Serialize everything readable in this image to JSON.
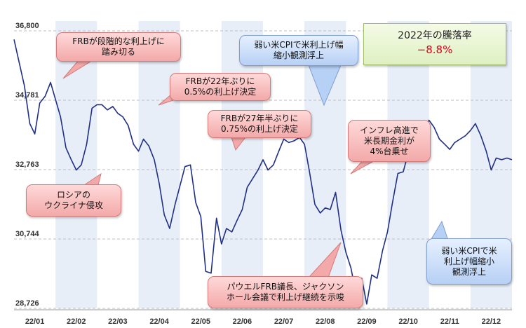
{
  "chart_data": {
    "type": "line",
    "title": "",
    "xlabel": "",
    "ylabel": "",
    "ylim": [
      28726,
      36800
    ],
    "y_ticks": [
      "36,800",
      "34,781",
      "32,763",
      "30,744",
      "28,726"
    ],
    "y_tick_values": [
      36800,
      34781,
      32763,
      30744,
      28726
    ],
    "x_ticks": [
      "22/01",
      "22/02",
      "22/03",
      "22/04",
      "22/05",
      "22/06",
      "22/07",
      "22/08",
      "22/09",
      "22/10",
      "22/11",
      "22/12"
    ],
    "grid": true,
    "series": [
      {
        "name": "",
        "color": "#1f2f86",
        "x": [
          0.0,
          0.12,
          0.25,
          0.38,
          0.5,
          0.62,
          0.75,
          0.88,
          1.0,
          1.12,
          1.25,
          1.38,
          1.5,
          1.62,
          1.75,
          1.88,
          2.0,
          2.12,
          2.25,
          2.38,
          2.5,
          2.62,
          2.75,
          2.88,
          3.0,
          3.12,
          3.25,
          3.38,
          3.5,
          3.62,
          3.75,
          3.88,
          4.0,
          4.12,
          4.25,
          4.38,
          4.5,
          4.62,
          4.75,
          4.88,
          5.0,
          5.12,
          5.25,
          5.38,
          5.5,
          5.62,
          5.75,
          5.88,
          6.0,
          6.12,
          6.25,
          6.38,
          6.5,
          6.62,
          6.75,
          6.88,
          7.0,
          7.12,
          7.25,
          7.38,
          7.5,
          7.62,
          7.75,
          7.88,
          8.0,
          8.12,
          8.25,
          8.38,
          8.5,
          8.62,
          8.75,
          8.88,
          9.0,
          9.12,
          9.25,
          9.38,
          9.5,
          9.62,
          9.75,
          9.88,
          10.0,
          10.12,
          10.25,
          10.38,
          10.5,
          10.62,
          10.75,
          10.88,
          11.0,
          11.12,
          11.25,
          11.38,
          11.5,
          11.62,
          11.75,
          11.88,
          12.0
        ],
        "values": [
          36550,
          35900,
          35200,
          34100,
          33800,
          34700,
          34900,
          35300,
          34800,
          34300,
          33400,
          33050,
          32750,
          32900,
          33500,
          34550,
          34650,
          34650,
          34500,
          34600,
          34400,
          34300,
          34050,
          33500,
          33300,
          33650,
          33450,
          33050,
          32350,
          31450,
          31050,
          31750,
          32300,
          32850,
          32900,
          31800,
          31400,
          29800,
          29750,
          31350,
          30600,
          31050,
          30950,
          31300,
          31600,
          32250,
          32500,
          32750,
          33050,
          32750,
          32900,
          33300,
          33650,
          33550,
          33600,
          33700,
          33500,
          32700,
          31750,
          31500,
          31650,
          31600,
          32100,
          31000,
          30350,
          29900,
          29100,
          29600,
          28850,
          29700,
          29600,
          30400,
          30950,
          31800,
          32650,
          32700,
          33250,
          33300,
          33500,
          33900,
          34200,
          34000,
          33650,
          33500,
          33350,
          33550,
          33650,
          33750,
          33900,
          34100,
          33750,
          33300,
          32750,
          33100,
          33050,
          33100,
          33050
        ]
      }
    ]
  },
  "annotations": {
    "a1": "FRBが段階的な利上げに\n踏み切る",
    "a2": "ロシアの\nウクライナ侵攻",
    "a3": "FRBが22年ぶりに\n0.5%の利上げ決定",
    "a4": "FRBが27年半ぶりに\n0.75%の利上げ決定",
    "a5": "弱い米CPIで米利上げ幅\n縮小観測浮上",
    "a6": "インフレ高進で\n米長期金利が\n4%台乗せ",
    "a7": "パウエルFRB議長、ジャクソン\nホール会議で利上げ継続を示唆",
    "a8": "弱い米CPIで米\n利上げ幅縮小\n観測浮上"
  },
  "ytd": {
    "title": "2022年の騰落率",
    "value": "−8.8%"
  },
  "colors": {
    "line": "#1f2f86",
    "band": "#e8eef8",
    "grid": "#bfbfbf",
    "note_red": "#f3a9a9",
    "note_blue": "#b7d0f5",
    "ytd_value": "#e0001b"
  }
}
